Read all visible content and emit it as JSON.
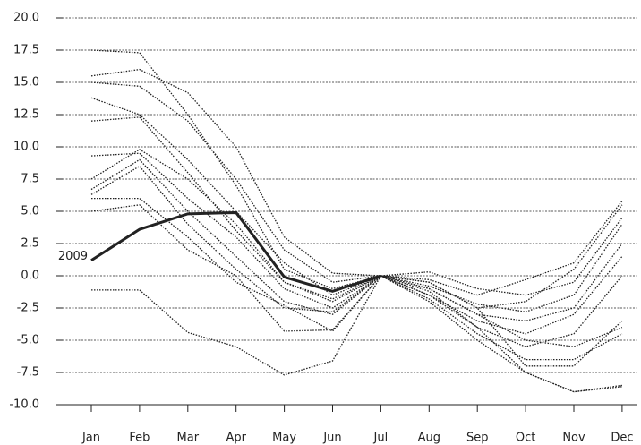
{
  "chart_data": {
    "type": "line",
    "annotation": "2009",
    "categories": [
      "Jan",
      "Feb",
      "Mar",
      "Apr",
      "May",
      "Jun",
      "Jul",
      "Aug",
      "Sep",
      "Oct",
      "Nov",
      "Dec"
    ],
    "ylim": [
      -10,
      20
    ],
    "yticks": [
      {
        "value": -10,
        "label": "-10.0"
      },
      {
        "value": -7.5,
        "label": "-7.5"
      },
      {
        "value": -5,
        "label": "-5.0"
      },
      {
        "value": -2.5,
        "label": "-2.5"
      },
      {
        "value": 0,
        "label": "0.0"
      },
      {
        "value": 2.5,
        "label": "2.5"
      },
      {
        "value": 5,
        "label": "5.0"
      },
      {
        "value": 7.5,
        "label": "7.5"
      },
      {
        "value": 10,
        "label": "10.0"
      },
      {
        "value": 12.5,
        "label": "12.5"
      },
      {
        "value": 15,
        "label": "15.0"
      },
      {
        "value": 17.5,
        "label": "17.5"
      },
      {
        "value": 20,
        "label": "20.0"
      }
    ],
    "grid": true,
    "series": [
      {
        "color": "#222222",
        "values": [
          17.5,
          17.3,
          12.5,
          7.0,
          0.5,
          -1.0,
          0,
          -0.5,
          -2.5,
          -2.0,
          0.5,
          5.5
        ]
      },
      {
        "color": "#222222",
        "values": [
          15.5,
          16.0,
          14.2,
          10.0,
          3.0,
          0.2,
          0,
          -0.3,
          -1.5,
          -0.3,
          1.0,
          5.8
        ]
      },
      {
        "color": "#222222",
        "values": [
          15.0,
          14.7,
          12.0,
          7.5,
          2.0,
          -0.5,
          0,
          0.3,
          -1.0,
          -1.5,
          -0.5,
          4.5
        ]
      },
      {
        "color": "#222222",
        "values": [
          13.8,
          12.5,
          9.0,
          5.0,
          1.0,
          -1.5,
          0,
          -0.8,
          -2.2,
          -2.8,
          -1.5,
          4.0
        ]
      },
      {
        "color": "#222222",
        "values": [
          12.0,
          12.3,
          8.0,
          3.5,
          -0.5,
          -2.0,
          0,
          -1.0,
          -3.0,
          -3.5,
          -2.5,
          2.5
        ]
      },
      {
        "color": "#222222",
        "values": [
          9.3,
          9.5,
          6.0,
          3.0,
          -1.0,
          -2.5,
          0,
          -1.5,
          -3.5,
          -4.5,
          -3.0,
          1.5
        ]
      },
      {
        "color": "#222222",
        "values": [
          7.5,
          9.8,
          7.5,
          4.0,
          -0.5,
          -1.8,
          0,
          -1.2,
          -4.0,
          -5.5,
          -4.5,
          0.0
        ]
      },
      {
        "color": "#222222",
        "values": [
          6.7,
          9.0,
          5.0,
          1.5,
          -2.0,
          -3.0,
          0,
          -0.5,
          -2.5,
          -7.0,
          -7.0,
          -3.5
        ]
      },
      {
        "color": "#222222",
        "values": [
          6.3,
          8.5,
          4.0,
          0.5,
          -2.5,
          -2.8,
          0,
          -2.0,
          -5.0,
          -7.5,
          -9.0,
          -8.5
        ]
      },
      {
        "color": "#222222",
        "values": [
          6.0,
          6.0,
          3.0,
          -0.5,
          -2.3,
          -4.3,
          0,
          -1.8,
          -4.5,
          -6.5,
          -6.5,
          -4.5
        ]
      },
      {
        "color": "#222222",
        "values": [
          5.0,
          5.5,
          2.0,
          0.0,
          -4.3,
          -4.2,
          0,
          -1.0,
          -3.0,
          -5.0,
          -5.5,
          -4.0
        ]
      },
      {
        "color": "#222222",
        "values": [
          -1.1,
          -1.1,
          -4.4,
          -5.5,
          -7.7,
          -6.6,
          0,
          -1.5,
          -4.0,
          -7.5,
          -9.0,
          -8.6
        ]
      },
      {
        "color": "#222222",
        "bold": true,
        "values": [
          1.2,
          3.6,
          4.8,
          4.9,
          -0.1,
          -1.2,
          0,
          null,
          null,
          null,
          null,
          null
        ]
      }
    ]
  }
}
